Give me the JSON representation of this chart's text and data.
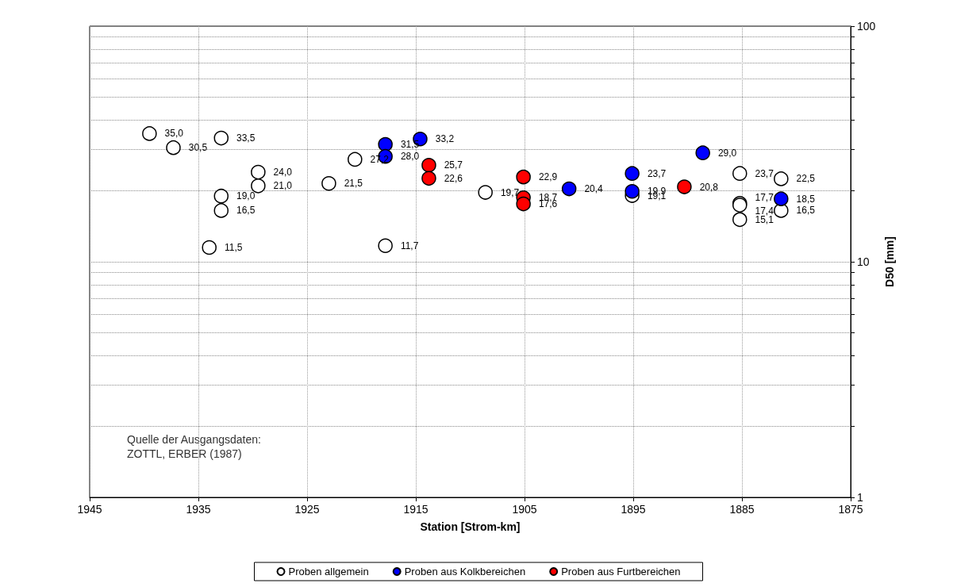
{
  "chart_data": {
    "type": "scatter",
    "xlabel": "Station [Strom-km]",
    "ylabel": "D50 [mm]",
    "xlim": [
      1945,
      1875
    ],
    "xticks": [
      1945,
      1935,
      1925,
      1915,
      1905,
      1895,
      1885,
      1875
    ],
    "ylim": [
      1,
      100
    ],
    "yticks": [
      1,
      {
        "value": 2,
        "label": null
      },
      {
        "value": 3,
        "label": null
      },
      {
        "value": 4,
        "label": null
      },
      {
        "value": 5,
        "label": null
      },
      {
        "value": 6,
        "label": null
      },
      {
        "value": 7,
        "label": null
      },
      {
        "value": 8,
        "label": null
      },
      {
        "value": 9,
        "label": null
      },
      10,
      {
        "value": 20,
        "label": null
      },
      {
        "value": 30,
        "label": null
      },
      {
        "value": 40,
        "label": null
      },
      {
        "value": 50,
        "label": null
      },
      {
        "value": 60,
        "label": null
      },
      {
        "value": 70,
        "label": null
      },
      {
        "value": 80,
        "label": null
      },
      {
        "value": 90,
        "label": null
      },
      100
    ],
    "log": "y",
    "grid": true,
    "legend": "bottom",
    "marker": "circle",
    "annotations": [
      "Quelle der Ausgangsdaten:\nZOTTL, ERBER (1987)"
    ],
    "series": [
      {
        "name": "Proben allgemein",
        "color": "#ffffff",
        "x": [
          1939.5,
          1937.3,
          1932.9,
          1932.9,
          1932.9,
          1934.0,
          1929.5,
          1929.5,
          1923.0,
          1920.6,
          1917.8,
          1908.6,
          1895.1,
          1885.2,
          1885.2,
          1885.2,
          1885.2,
          1881.4,
          1881.4
        ],
        "values": [
          35.0,
          30.5,
          33.5,
          19.0,
          16.5,
          11.5,
          24.0,
          21.0,
          21.5,
          27.2,
          11.7,
          19.7,
          19.1,
          23.7,
          17.7,
          17.4,
          15.1,
          22.5,
          16.5
        ],
        "value_labels": [
          "35,0",
          "30,5",
          "33,5",
          "19,0",
          "16,5",
          "11,5",
          "24,0",
          "21,0",
          "21,5",
          "27,2",
          "11,7",
          "19,7",
          "19,1",
          "23,7",
          "17,7",
          "17,4",
          "15,1",
          "22,5",
          "16,5"
        ]
      },
      {
        "name": "Proben aus Kolkbereichen",
        "color": "#0000ff",
        "x": [
          1917.8,
          1917.8,
          1914.6,
          1900.9,
          1895.1,
          1895.1,
          1888.6,
          1881.4
        ],
        "values": [
          31.5,
          28.0,
          33.2,
          20.4,
          23.7,
          19.9,
          29.0,
          18.5
        ],
        "value_labels": [
          "31,5",
          "28,0",
          "33,2",
          "20,4",
          "23,7",
          "19,9",
          "29,0",
          "18,5"
        ]
      },
      {
        "name": "Proben aus Furtbereichen",
        "color": "#ff0000",
        "x": [
          1913.8,
          1913.8,
          1905.1,
          1905.1,
          1905.1,
          1890.3
        ],
        "values": [
          25.7,
          22.6,
          22.9,
          18.7,
          17.6,
          20.8
        ],
        "value_labels": [
          "25,7",
          "22,6",
          "22,9",
          "18,7",
          "17,6",
          "20,8"
        ]
      }
    ]
  }
}
